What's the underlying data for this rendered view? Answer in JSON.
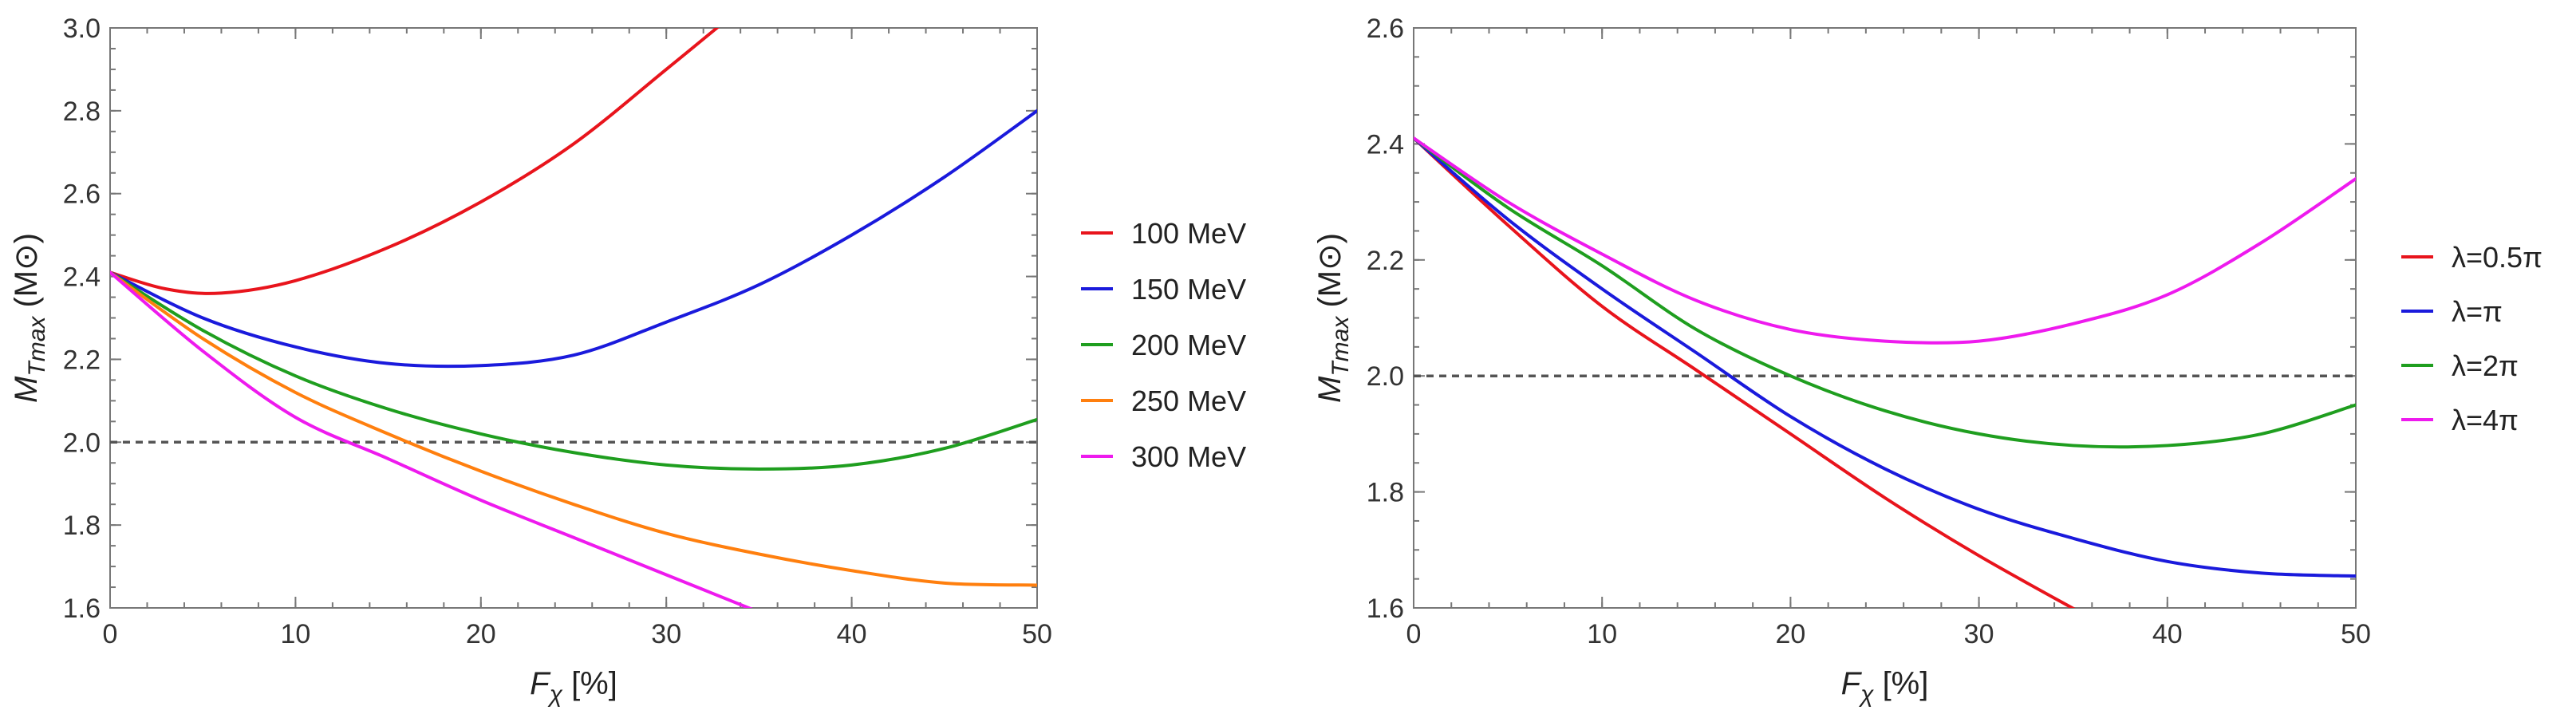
{
  "chart_data": [
    {
      "type": "line",
      "xlabel": "F_χ [%]",
      "ylabel": "M_Tmax (M⊙)",
      "xlim": [
        0,
        50
      ],
      "ylim": [
        1.6,
        3.0
      ],
      "x_ticks": [
        "0",
        "10",
        "20",
        "30",
        "40",
        "50"
      ],
      "y_ticks": [
        "1.6",
        "1.8",
        "2.0",
        "2.2",
        "2.4",
        "2.6",
        "2.8",
        "3.0"
      ],
      "reference_line": {
        "y": 2.0,
        "style": "dashed",
        "color": "#555555"
      },
      "legend_position": "right",
      "series": [
        {
          "name": "100 MeV",
          "color": "#e8141c",
          "x": [
            0,
            3,
            6,
            10,
            15,
            20,
            25,
            30,
            33
          ],
          "y": [
            2.41,
            2.37,
            2.36,
            2.39,
            2.47,
            2.58,
            2.72,
            2.9,
            3.01
          ]
        },
        {
          "name": "150 MeV",
          "color": "#1a1adc",
          "x": [
            0,
            5,
            10,
            15,
            20,
            25,
            30,
            35,
            40,
            45,
            50
          ],
          "y": [
            2.41,
            2.3,
            2.23,
            2.19,
            2.185,
            2.21,
            2.29,
            2.38,
            2.5,
            2.64,
            2.8
          ]
        },
        {
          "name": "200 MeV",
          "color": "#1f9e1f",
          "x": [
            0,
            5,
            10,
            15,
            20,
            25,
            30,
            35,
            40,
            45,
            50
          ],
          "y": [
            2.41,
            2.27,
            2.16,
            2.08,
            2.02,
            1.975,
            1.945,
            1.935,
            1.945,
            1.985,
            2.055
          ]
        },
        {
          "name": "250 MeV",
          "color": "#ff7f0e",
          "x": [
            0,
            5,
            10,
            15,
            20,
            25,
            30,
            35,
            40,
            45,
            50
          ],
          "y": [
            2.41,
            2.25,
            2.12,
            2.02,
            1.93,
            1.85,
            1.78,
            1.73,
            1.69,
            1.66,
            1.655
          ]
        },
        {
          "name": "300 MeV",
          "color": "#ee1aee",
          "x": [
            0,
            5,
            10,
            15,
            20,
            25,
            30,
            35
          ],
          "y": [
            2.41,
            2.22,
            2.06,
            1.96,
            1.86,
            1.77,
            1.68,
            1.59
          ]
        }
      ]
    },
    {
      "type": "line",
      "xlabel": "F_χ [%]",
      "ylabel": "M_Tmax (M⊙)",
      "xlim": [
        0,
        50
      ],
      "ylim": [
        1.6,
        2.6
      ],
      "x_ticks": [
        "0",
        "10",
        "20",
        "30",
        "40",
        "50"
      ],
      "y_ticks": [
        "1.6",
        "1.8",
        "2.0",
        "2.2",
        "2.4",
        "2.6"
      ],
      "reference_line": {
        "y": 2.0,
        "style": "dashed",
        "color": "#555555"
      },
      "legend_position": "right",
      "series": [
        {
          "name": "λ=0.5π",
          "color": "#e8141c",
          "x": [
            0,
            5,
            10,
            15,
            20,
            25,
            30,
            35.5
          ],
          "y": [
            2.41,
            2.26,
            2.12,
            2.01,
            1.9,
            1.79,
            1.69,
            1.59
          ]
        },
        {
          "name": "λ=π",
          "color": "#1a1adc",
          "x": [
            0,
            5,
            10,
            15,
            20,
            25,
            30,
            35,
            40,
            45,
            50
          ],
          "y": [
            2.41,
            2.27,
            2.15,
            2.04,
            1.93,
            1.84,
            1.77,
            1.72,
            1.68,
            1.66,
            1.655
          ]
        },
        {
          "name": "λ=2π",
          "color": "#1f9e1f",
          "x": [
            0,
            5,
            10,
            15,
            20,
            25,
            30,
            35,
            40,
            45,
            50
          ],
          "y": [
            2.41,
            2.29,
            2.19,
            2.08,
            2.0,
            1.94,
            1.9,
            1.88,
            1.88,
            1.9,
            1.95
          ]
        },
        {
          "name": "λ=4π",
          "color": "#ee1aee",
          "x": [
            0,
            5,
            10,
            15,
            20,
            25,
            30,
            35,
            40,
            45,
            50
          ],
          "y": [
            2.41,
            2.3,
            2.21,
            2.13,
            2.08,
            2.06,
            2.06,
            2.09,
            2.14,
            2.23,
            2.34
          ]
        }
      ]
    }
  ]
}
